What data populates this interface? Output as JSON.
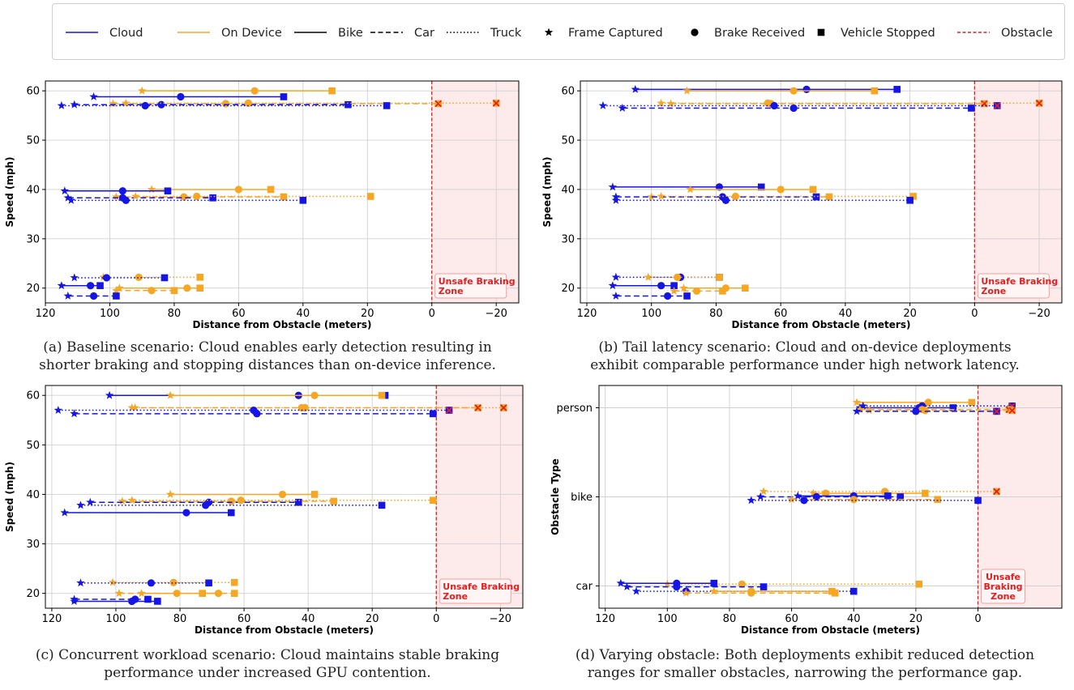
{
  "legend": {
    "entries": [
      {
        "label": "Cloud",
        "kind": "line",
        "color": "#1515e6",
        "dash": "solid"
      },
      {
        "label": "On Device",
        "kind": "line",
        "color": "#f5a623",
        "dash": "solid"
      },
      {
        "label": "Bike",
        "kind": "line",
        "color": "#000000",
        "dash": "solid"
      },
      {
        "label": "Car",
        "kind": "line",
        "color": "#000000",
        "dash": "dashed"
      },
      {
        "label": "Truck",
        "kind": "line",
        "color": "#000000",
        "dash": "dotted"
      },
      {
        "label": "Frame Captured",
        "kind": "marker",
        "marker": "star"
      },
      {
        "label": "Brake Received",
        "kind": "marker",
        "marker": "circle"
      },
      {
        "label": "Vehicle Stopped",
        "kind": "marker",
        "marker": "square"
      },
      {
        "label": "Obstacle",
        "kind": "line",
        "color": "#e02020",
        "dash": "dashed"
      }
    ]
  },
  "colors": {
    "cloud": "#1515e6",
    "device": "#f5a623",
    "obstacle": "#e02020",
    "zone": "#fdeaea"
  },
  "chart_data": [
    {
      "type": "line",
      "id": "a",
      "xlabel": "Distance from Obstacle (meters)",
      "ylabel": "Speed (mph)",
      "xlim": [
        120,
        -27
      ],
      "ylim": [
        17,
        62
      ],
      "xticks": [
        120,
        100,
        80,
        60,
        40,
        20,
        0,
        -20
      ],
      "xtick_labels": [
        "120",
        "100",
        "80",
        "60",
        "40",
        "20",
        "0",
        "−20"
      ],
      "yticks": [
        20,
        30,
        40,
        50,
        60
      ],
      "zone_label": [
        "Unsafe Braking",
        "Zone"
      ],
      "caption": [
        "(a) Baseline scenario: Cloud enables early detection resulting in",
        "shorter braking and stopping distances than on-device inference."
      ],
      "series": [
        {
          "deploy": "device",
          "obstacle": "bike",
          "y": 60.0,
          "frame": 90,
          "brake": 55,
          "stop": 31,
          "collision": false
        },
        {
          "deploy": "cloud",
          "obstacle": "bike",
          "y": 58.8,
          "frame": 105,
          "brake": 78,
          "stop": 46,
          "collision": false
        },
        {
          "deploy": "device",
          "obstacle": "car",
          "y": 57.4,
          "frame": 99,
          "brake": 64,
          "stop": -2,
          "collision": true
        },
        {
          "deploy": "cloud",
          "obstacle": "car",
          "y": 57.2,
          "frame": 111,
          "brake": 84,
          "stop": 26,
          "collision": false
        },
        {
          "deploy": "device",
          "obstacle": "truck",
          "y": 57.5,
          "frame": 95,
          "brake": 57,
          "stop": -20,
          "collision": true
        },
        {
          "deploy": "cloud",
          "obstacle": "truck",
          "y": 57.0,
          "frame": 115,
          "brake": 89,
          "stop": 14,
          "collision": false
        },
        {
          "deploy": "device",
          "obstacle": "bike",
          "y": 40.0,
          "frame": 87,
          "brake": 60,
          "stop": 50,
          "collision": false
        },
        {
          "deploy": "cloud",
          "obstacle": "bike",
          "y": 39.7,
          "frame": 114,
          "brake": 96,
          "stop": 82,
          "collision": false
        },
        {
          "deploy": "device",
          "obstacle": "car",
          "y": 38.5,
          "frame": 98,
          "brake": 77,
          "stop": 46,
          "collision": false
        },
        {
          "deploy": "cloud",
          "obstacle": "car",
          "y": 38.3,
          "frame": 113,
          "brake": 96,
          "stop": 68,
          "collision": false
        },
        {
          "deploy": "device",
          "obstacle": "truck",
          "y": 38.6,
          "frame": 92,
          "brake": 73,
          "stop": 19,
          "collision": false
        },
        {
          "deploy": "cloud",
          "obstacle": "truck",
          "y": 37.8,
          "frame": 112,
          "brake": 95,
          "stop": 40,
          "collision": false
        },
        {
          "deploy": "device",
          "obstacle": "bike",
          "y": 20.0,
          "frame": 97,
          "brake": 76,
          "stop": 72,
          "collision": false
        },
        {
          "deploy": "cloud",
          "obstacle": "bike",
          "y": 20.5,
          "frame": 115,
          "brake": 106,
          "stop": 103,
          "collision": false
        },
        {
          "deploy": "device",
          "obstacle": "car",
          "y": 19.5,
          "frame": 98,
          "brake": 87,
          "stop": 80,
          "collision": false
        },
        {
          "deploy": "cloud",
          "obstacle": "car",
          "y": 18.4,
          "frame": 113,
          "brake": 105,
          "stop": 98,
          "collision": false
        },
        {
          "deploy": "device",
          "obstacle": "truck",
          "y": 22.2,
          "frame": 102,
          "brake": 91,
          "stop": 72,
          "collision": false
        },
        {
          "deploy": "cloud",
          "obstacle": "truck",
          "y": 22.1,
          "frame": 111,
          "brake": 101,
          "stop": 83,
          "collision": false
        }
      ]
    },
    {
      "type": "line",
      "id": "b",
      "xlabel": "Distance from Obstacle (meters)",
      "ylabel": "Speed (mph)",
      "xlim": [
        122,
        -27
      ],
      "ylim": [
        17,
        62
      ],
      "xticks": [
        120,
        100,
        80,
        60,
        40,
        20,
        0,
        -20
      ],
      "xtick_labels": [
        "120",
        "100",
        "80",
        "60",
        "40",
        "20",
        "0",
        "−20"
      ],
      "yticks": [
        20,
        30,
        40,
        50,
        60
      ],
      "zone_label": [
        "Unsafe Braking",
        "Zone"
      ],
      "caption": [
        "(b) Tail latency scenario: Cloud and on-device deployments",
        "exhibit comparable performance under high network latency."
      ],
      "series": [
        {
          "deploy": "cloud",
          "obstacle": "bike",
          "y": 60.3,
          "frame": 105,
          "brake": 52,
          "stop": 24,
          "collision": false
        },
        {
          "deploy": "device",
          "obstacle": "bike",
          "y": 60.0,
          "frame": 89,
          "brake": 56,
          "stop": 31,
          "collision": false
        },
        {
          "deploy": "device",
          "obstacle": "car",
          "y": 57.4,
          "frame": 94,
          "brake": 63,
          "stop": -3,
          "collision": true
        },
        {
          "deploy": "device",
          "obstacle": "truck",
          "y": 57.5,
          "frame": 97,
          "brake": 64,
          "stop": -20,
          "collision": true
        },
        {
          "deploy": "cloud",
          "obstacle": "truck",
          "y": 57.0,
          "frame": 115,
          "brake": 62,
          "stop": -7,
          "collision": true
        },
        {
          "deploy": "cloud",
          "obstacle": "car",
          "y": 56.5,
          "frame": 109,
          "brake": 56,
          "stop": 1,
          "collision": false
        },
        {
          "deploy": "cloud",
          "obstacle": "bike",
          "y": 40.5,
          "frame": 112,
          "brake": 79,
          "stop": 66,
          "collision": false
        },
        {
          "deploy": "device",
          "obstacle": "bike",
          "y": 40.0,
          "frame": 88,
          "brake": 60,
          "stop": 50,
          "collision": false
        },
        {
          "deploy": "device",
          "obstacle": "car",
          "y": 38.5,
          "frame": 100,
          "brake": 78,
          "stop": 45,
          "collision": false
        },
        {
          "deploy": "cloud",
          "obstacle": "car",
          "y": 38.5,
          "frame": 111,
          "brake": 78,
          "stop": 49,
          "collision": false
        },
        {
          "deploy": "device",
          "obstacle": "truck",
          "y": 38.6,
          "frame": 97,
          "brake": 74,
          "stop": 19,
          "collision": false
        },
        {
          "deploy": "cloud",
          "obstacle": "truck",
          "y": 37.8,
          "frame": 111,
          "brake": 77,
          "stop": 20,
          "collision": false
        },
        {
          "deploy": "cloud",
          "obstacle": "truck",
          "y": 22.2,
          "frame": 111,
          "brake": 91,
          "stop": 79,
          "collision": false
        },
        {
          "deploy": "device",
          "obstacle": "truck",
          "y": 22.2,
          "frame": 101,
          "brake": 92,
          "stop": 79,
          "collision": false
        },
        {
          "deploy": "cloud",
          "obstacle": "bike",
          "y": 20.5,
          "frame": 112,
          "brake": 97,
          "stop": 93,
          "collision": false
        },
        {
          "deploy": "device",
          "obstacle": "bike",
          "y": 20.0,
          "frame": 90,
          "brake": 77,
          "stop": 71,
          "collision": false
        },
        {
          "deploy": "device",
          "obstacle": "car",
          "y": 19.4,
          "frame": 93,
          "brake": 86,
          "stop": 78,
          "collision": false
        },
        {
          "deploy": "cloud",
          "obstacle": "car",
          "y": 18.4,
          "frame": 111,
          "brake": 95,
          "stop": 89,
          "collision": false
        }
      ]
    },
    {
      "type": "line",
      "id": "c",
      "xlabel": "Distance from Obstacle (meters)",
      "ylabel": "Speed (mph)",
      "xlim": [
        122,
        -27
      ],
      "ylim": [
        17,
        62
      ],
      "xticks": [
        120,
        100,
        80,
        60,
        40,
        20,
        0,
        -20
      ],
      "xtick_labels": [
        "120",
        "100",
        "80",
        "60",
        "40",
        "20",
        "0",
        "−20"
      ],
      "yticks": [
        20,
        30,
        40,
        50,
        60
      ],
      "zone_label": [
        "Unsafe Braking",
        "Zone"
      ],
      "caption": [
        "(c) Concurrent workload scenario: Cloud maintains stable braking",
        "performance under increased GPU contention."
      ],
      "series": [
        {
          "deploy": "cloud",
          "obstacle": "bike",
          "y": 60.0,
          "frame": 102,
          "brake": 43,
          "stop": 16,
          "collision": false
        },
        {
          "deploy": "device",
          "obstacle": "bike",
          "y": 60.0,
          "frame": 83,
          "brake": 38,
          "stop": 17,
          "collision": false
        },
        {
          "deploy": "device",
          "obstacle": "car",
          "y": 57.5,
          "frame": 95,
          "brake": 42,
          "stop": -13,
          "collision": true
        },
        {
          "deploy": "device",
          "obstacle": "truck",
          "y": 57.5,
          "frame": 94,
          "brake": 41,
          "stop": -21,
          "collision": true
        },
        {
          "deploy": "cloud",
          "obstacle": "truck",
          "y": 57.0,
          "frame": 118,
          "brake": 57,
          "stop": -4,
          "collision": true
        },
        {
          "deploy": "cloud",
          "obstacle": "car",
          "y": 56.3,
          "frame": 113,
          "brake": 56,
          "stop": 1,
          "collision": false
        },
        {
          "deploy": "device",
          "obstacle": "bike",
          "y": 40.0,
          "frame": 83,
          "brake": 48,
          "stop": 38,
          "collision": false
        },
        {
          "deploy": "device",
          "obstacle": "car",
          "y": 38.6,
          "frame": 98,
          "brake": 64,
          "stop": 32,
          "collision": false
        },
        {
          "deploy": "cloud",
          "obstacle": "car",
          "y": 38.4,
          "frame": 108,
          "brake": 71,
          "stop": 43,
          "collision": false
        },
        {
          "deploy": "device",
          "obstacle": "truck",
          "y": 38.8,
          "frame": 95,
          "brake": 61,
          "stop": 1,
          "collision": false
        },
        {
          "deploy": "cloud",
          "obstacle": "truck",
          "y": 37.8,
          "frame": 111,
          "brake": 72,
          "stop": 17,
          "collision": false
        },
        {
          "deploy": "cloud",
          "obstacle": "bike",
          "y": 36.3,
          "frame": 116,
          "brake": 78,
          "stop": 64,
          "collision": false
        },
        {
          "deploy": "device",
          "obstacle": "truck",
          "y": 22.2,
          "frame": 101,
          "brake": 82,
          "stop": 63,
          "collision": false
        },
        {
          "deploy": "cloud",
          "obstacle": "truck",
          "y": 22.1,
          "frame": 111,
          "brake": 89,
          "stop": 71,
          "collision": false
        },
        {
          "deploy": "device",
          "obstacle": "car",
          "y": 20.0,
          "frame": 99,
          "brake": 81,
          "stop": 63,
          "collision": false
        },
        {
          "deploy": "device",
          "obstacle": "bike",
          "y": 20.0,
          "frame": 92,
          "brake": 68,
          "stop": 73,
          "collision": false
        },
        {
          "deploy": "cloud",
          "obstacle": "car",
          "y": 18.8,
          "frame": 113,
          "brake": 94,
          "stop": 90,
          "collision": false
        },
        {
          "deploy": "cloud",
          "obstacle": "bike",
          "y": 18.4,
          "frame": 113,
          "brake": 95,
          "stop": 87,
          "collision": false
        }
      ]
    },
    {
      "type": "line",
      "id": "d",
      "xlabel": "Distance from Obstacle (meters)",
      "ylabel": "Obstacle Type",
      "xlim": [
        122,
        -27
      ],
      "ylim": [
        -0.25,
        2.25
      ],
      "xticks": [
        120,
        100,
        80,
        60,
        40,
        20,
        0
      ],
      "xtick_labels": [
        "120",
        "100",
        "80",
        "60",
        "40",
        "20",
        "0"
      ],
      "ycategories": [
        "car",
        "bike",
        "person"
      ],
      "zone_label": [
        "Unsafe",
        "Braking",
        "Zone"
      ],
      "caption": [
        "(d) Varying obstacle: Both deployments exhibit reduced detection",
        "ranges for smaller obstacles, narrowing the performance gap."
      ],
      "series": [
        {
          "deploy": "device",
          "obstacle": "bike",
          "y": 2.06,
          "frame": 39,
          "brake": 16,
          "stop": 2,
          "collision": false
        },
        {
          "deploy": "cloud",
          "obstacle": "truck",
          "y": 2.02,
          "frame": 37,
          "brake": 18,
          "stop": -11,
          "collision": true
        },
        {
          "deploy": "cloud",
          "obstacle": "bike",
          "y": 2.0,
          "frame": 38,
          "brake": 19,
          "stop": 8,
          "collision": false
        },
        {
          "deploy": "device",
          "obstacle": "car",
          "y": 1.98,
          "frame": 38,
          "brake": 18,
          "stop": -10,
          "collision": true
        },
        {
          "deploy": "device",
          "obstacle": "truck",
          "y": 1.97,
          "frame": 35,
          "brake": 17,
          "stop": -11,
          "collision": true
        },
        {
          "deploy": "cloud",
          "obstacle": "car",
          "y": 1.96,
          "frame": 39,
          "brake": 20,
          "stop": -6,
          "collision": true
        },
        {
          "deploy": "device",
          "obstacle": "truck",
          "y": 1.06,
          "frame": 69,
          "brake": 30,
          "stop": -6,
          "collision": true
        },
        {
          "deploy": "device",
          "obstacle": "bike",
          "y": 1.04,
          "frame": 53,
          "brake": 49,
          "stop": 17,
          "collision": false
        },
        {
          "deploy": "cloud",
          "obstacle": "bike",
          "y": 1.01,
          "frame": 58,
          "brake": 40,
          "stop": 29,
          "collision": false
        },
        {
          "deploy": "cloud",
          "obstacle": "car",
          "y": 1.0,
          "frame": 70,
          "brake": 52,
          "stop": 25,
          "collision": false
        },
        {
          "deploy": "device",
          "obstacle": "car",
          "y": 0.97,
          "frame": 60,
          "brake": 40,
          "stop": 13,
          "collision": false
        },
        {
          "deploy": "cloud",
          "obstacle": "truck",
          "y": 0.96,
          "frame": 73,
          "brake": 56,
          "stop": 0,
          "collision": false
        },
        {
          "deploy": "device",
          "obstacle": "truck",
          "y": 0.02,
          "frame": 100,
          "brake": 76,
          "stop": 19,
          "collision": false
        },
        {
          "deploy": "cloud",
          "obstacle": "bike",
          "y": 0.03,
          "frame": 115,
          "brake": 97,
          "stop": 85,
          "collision": false
        },
        {
          "deploy": "cloud",
          "obstacle": "car",
          "y": -0.01,
          "frame": 113,
          "brake": 97,
          "stop": 69,
          "collision": false
        },
        {
          "deploy": "cloud",
          "obstacle": "truck",
          "y": -0.06,
          "frame": 110,
          "brake": 94,
          "stop": 40,
          "collision": false
        },
        {
          "deploy": "device",
          "obstacle": "bike",
          "y": -0.06,
          "frame": 85,
          "brake": 73,
          "stop": 47,
          "collision": false
        },
        {
          "deploy": "device",
          "obstacle": "car",
          "y": -0.08,
          "frame": 94,
          "brake": 73,
          "stop": 46,
          "collision": false
        }
      ]
    }
  ]
}
